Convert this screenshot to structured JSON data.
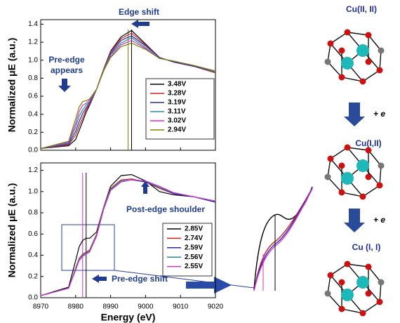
{
  "chart_data": [
    {
      "type": "line",
      "ylabel": "Normalized μE (a.u.)",
      "x": [
        8970,
        8978,
        8980,
        8981,
        8982,
        8983,
        8984,
        8986,
        8988,
        8990,
        8993,
        8996,
        9000,
        9004,
        9008,
        9014,
        9020
      ],
      "series": [
        {
          "name": "3.48V",
          "color": "#000000",
          "values": [
            0.02,
            0.05,
            0.12,
            0.22,
            0.32,
            0.42,
            0.5,
            0.68,
            0.9,
            1.1,
            1.26,
            1.33,
            1.18,
            1.03,
            0.98,
            0.93,
            0.86
          ]
        },
        {
          "name": "3.28V",
          "color": "#cc2222",
          "values": [
            0.02,
            0.06,
            0.17,
            0.27,
            0.36,
            0.45,
            0.51,
            0.68,
            0.9,
            1.09,
            1.24,
            1.3,
            1.17,
            1.03,
            0.98,
            0.93,
            0.86
          ]
        },
        {
          "name": "3.19V",
          "color": "#2a2aa8",
          "values": [
            0.02,
            0.07,
            0.21,
            0.32,
            0.41,
            0.47,
            0.53,
            0.68,
            0.89,
            1.07,
            1.22,
            1.27,
            1.16,
            1.03,
            0.98,
            0.93,
            0.87
          ]
        },
        {
          "name": "3.11V",
          "color": "#2a8a9a",
          "values": [
            0.02,
            0.08,
            0.26,
            0.38,
            0.45,
            0.5,
            0.54,
            0.68,
            0.89,
            1.06,
            1.19,
            1.25,
            1.14,
            1.02,
            0.99,
            0.94,
            0.87
          ]
        },
        {
          "name": "3.02V",
          "color": "#cc33cc",
          "values": [
            0.02,
            0.09,
            0.3,
            0.43,
            0.5,
            0.52,
            0.56,
            0.68,
            0.88,
            1.04,
            1.17,
            1.22,
            1.13,
            1.02,
            0.99,
            0.94,
            0.88
          ]
        },
        {
          "name": "2.94V",
          "color": "#808000",
          "values": [
            0.02,
            0.1,
            0.35,
            0.48,
            0.54,
            0.55,
            0.57,
            0.68,
            0.88,
            1.03,
            1.15,
            1.19,
            1.12,
            1.02,
            0.99,
            0.94,
            0.88
          ]
        }
      ],
      "vlines": [
        {
          "x": 8995,
          "color": "#808000"
        },
        {
          "x": 8996,
          "color": "#000000"
        }
      ],
      "xlim": [
        8970,
        9020
      ],
      "xticks": [
        8970,
        8980,
        8990,
        9000,
        9010,
        9020
      ],
      "ylim": [
        0,
        1.45
      ],
      "yticks": [
        {
          "value": 0,
          "label": "0.0"
        },
        0.2,
        0.4,
        0.6,
        0.8,
        {
          "value": 1,
          "label": "1.0"
        },
        1.2,
        1.4
      ],
      "legend": "right",
      "annotations": [
        "Edge shift",
        "Pre-edge",
        "appears"
      ]
    },
    {
      "type": "line",
      "ylabel": "Normalized μE (a.u.)",
      "xlabel": "Energy (eV)",
      "x": [
        8970,
        8978,
        8980,
        8981,
        8982,
        8983,
        8984,
        8986,
        8988,
        8990,
        8993,
        8996,
        9000,
        9004,
        9008,
        9014,
        9020
      ],
      "series": [
        {
          "name": "2.85V",
          "color": "#000000",
          "values": [
            0.02,
            0.1,
            0.35,
            0.48,
            0.54,
            0.56,
            0.56,
            0.62,
            0.85,
            1.05,
            1.15,
            1.16,
            1.1,
            1.0,
            0.97,
            0.95,
            0.9
          ]
        },
        {
          "name": "2.74V",
          "color": "#cc2222",
          "values": [
            0.02,
            0.09,
            0.28,
            0.37,
            0.41,
            0.43,
            0.45,
            0.6,
            0.85,
            1.03,
            1.11,
            1.12,
            1.09,
            1.03,
            0.98,
            0.95,
            0.9
          ]
        },
        {
          "name": "2.59V",
          "color": "#2a2aa8",
          "values": [
            0.02,
            0.09,
            0.27,
            0.36,
            0.4,
            0.42,
            0.44,
            0.59,
            0.84,
            1.02,
            1.1,
            1.11,
            1.09,
            1.04,
            0.98,
            0.95,
            0.9
          ]
        },
        {
          "name": "2.56V",
          "color": "#2a8a9a",
          "values": [
            0.02,
            0.09,
            0.27,
            0.36,
            0.4,
            0.42,
            0.44,
            0.59,
            0.84,
            1.02,
            1.1,
            1.11,
            1.1,
            1.04,
            0.99,
            0.95,
            0.91
          ]
        },
        {
          "name": "2.55V",
          "color": "#cc33cc",
          "values": [
            0.02,
            0.09,
            0.26,
            0.35,
            0.39,
            0.41,
            0.43,
            0.58,
            0.83,
            1.01,
            1.09,
            1.11,
            1.1,
            1.05,
            0.99,
            0.95,
            0.91
          ]
        }
      ],
      "vlines": [
        {
          "x": 8982,
          "color": "#cc33cc"
        },
        {
          "x": 8983,
          "color": "#000000"
        }
      ],
      "xlim": [
        8970,
        9020
      ],
      "xticks": [
        8970,
        8980,
        8990,
        9000,
        9010,
        9020
      ],
      "ylim": [
        0,
        1.27
      ],
      "yticks": [
        {
          "value": 0,
          "label": "0.0"
        },
        0.2,
        0.4,
        0.6,
        0.8,
        {
          "value": 1,
          "label": "1.0"
        },
        1.2
      ],
      "legend": "right",
      "annotations": [
        "Post-edge shoulder",
        "Pre-edge shift"
      ]
    }
  ],
  "diagram": {
    "states": [
      "Cu(II, II)",
      "Cu(I,II)",
      "Cu (I, I)"
    ],
    "steps": [
      "+ e",
      "+ e"
    ]
  }
}
